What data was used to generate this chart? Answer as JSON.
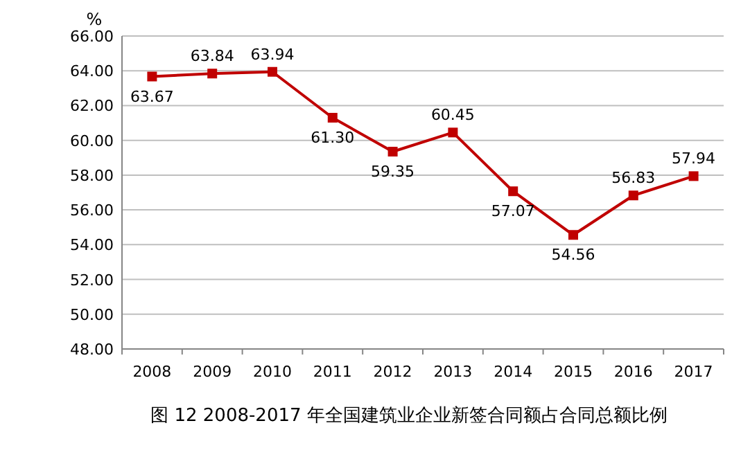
{
  "chart_data": {
    "type": "line",
    "title": "图 12 2008-2017 年全国建筑业企业新签合同额占合同总额比例",
    "ylabel": "%",
    "categories": [
      "2008",
      "2009",
      "2010",
      "2011",
      "2012",
      "2013",
      "2014",
      "2015",
      "2016",
      "2017"
    ],
    "series": [
      {
        "color": "#c00000",
        "values": [
          63.67,
          63.84,
          63.94,
          61.3,
          59.35,
          60.45,
          57.07,
          54.56,
          56.83,
          57.94
        ],
        "value_labels": [
          "63.67",
          "63.84",
          "63.94",
          "61.30",
          "59.35",
          "60.45",
          "57.07",
          "54.56",
          "56.83",
          "57.94"
        ]
      }
    ],
    "ylim": [
      48,
      66
    ],
    "yticks": [
      {
        "value": 48,
        "label": "48.00"
      },
      {
        "value": 50,
        "label": "50.00"
      },
      {
        "value": 52,
        "label": "52.00"
      },
      {
        "value": 54,
        "label": "54.00"
      },
      {
        "value": 56,
        "label": "56.00"
      },
      {
        "value": 58,
        "label": "58.00"
      },
      {
        "value": 60,
        "label": "60.00"
      },
      {
        "value": 62,
        "label": "62.00"
      },
      {
        "value": 64,
        "label": "64.00"
      },
      {
        "value": 66,
        "label": "66.00"
      }
    ],
    "grid": "y",
    "marker": "square",
    "line_style": "solid"
  }
}
